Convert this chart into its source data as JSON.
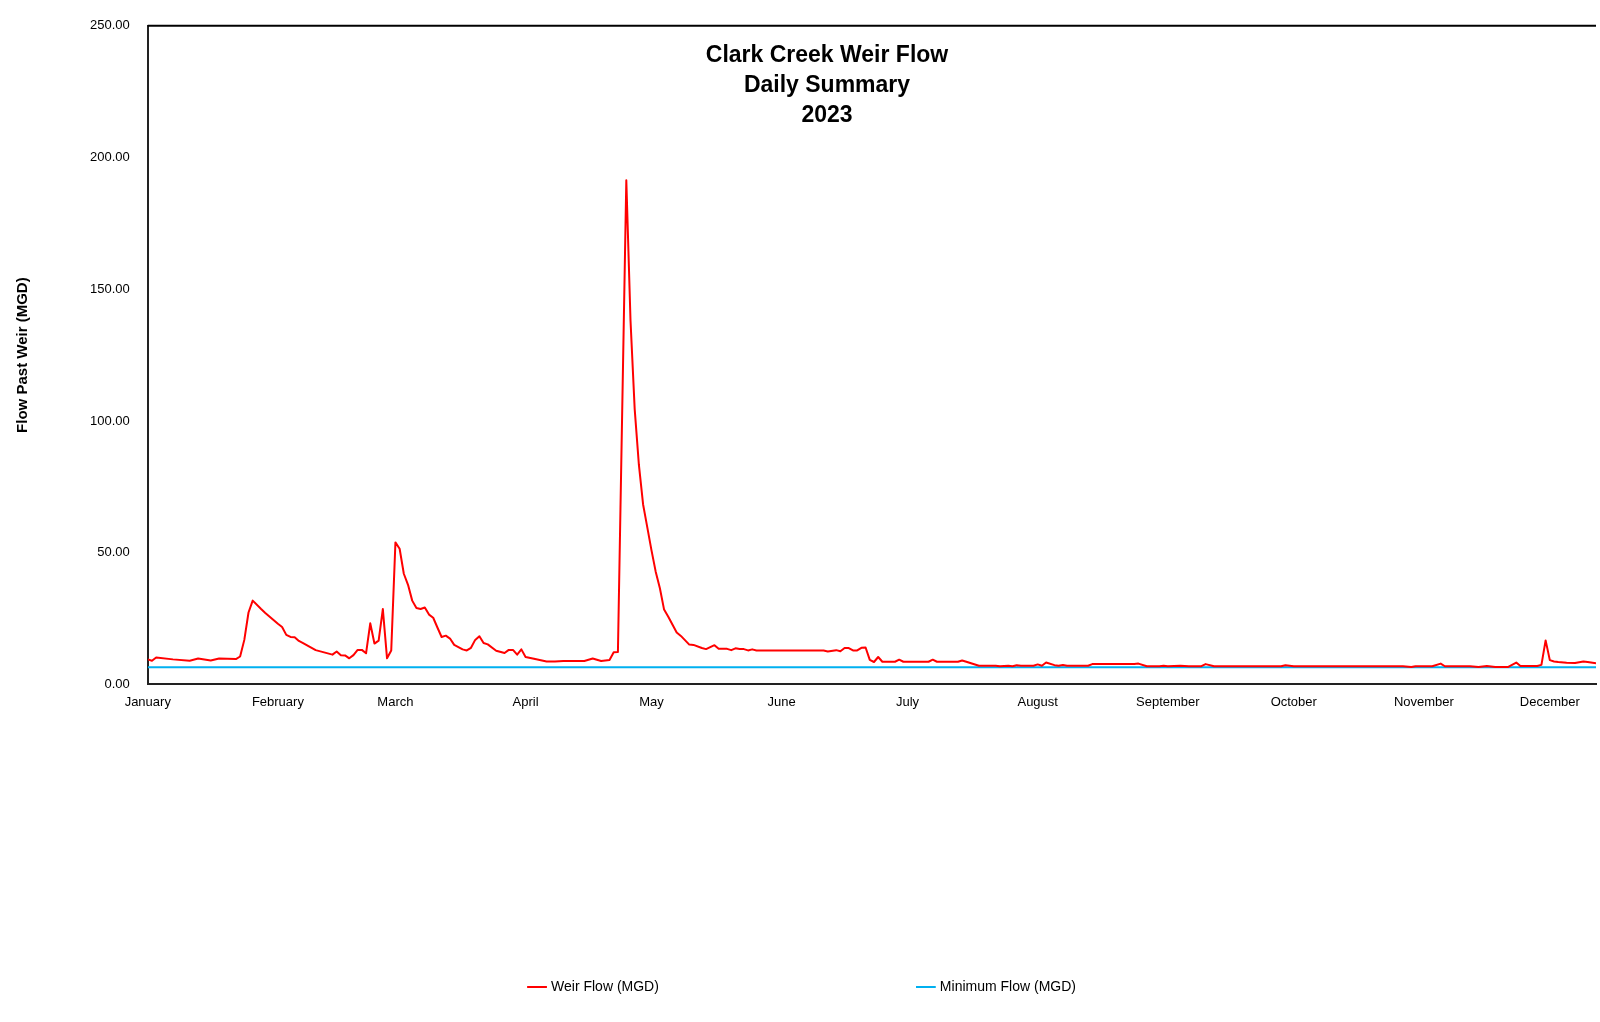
{
  "chart_data": {
    "type": "line",
    "title": "Clark Creek Weir Flow\nDaily Summary\n2023",
    "ylabel": "Flow Past Weir (MGD)",
    "xlim": [
      "2023-01-01",
      "2023-12-12"
    ],
    "xticks": [
      {
        "value": "2023-01-01",
        "label": "January"
      },
      {
        "value": "2023-02-01",
        "label": "February"
      },
      {
        "value": "2023-03-01",
        "label": "March"
      },
      {
        "value": "2023-04-01",
        "label": "April"
      },
      {
        "value": "2023-05-01",
        "label": "May"
      },
      {
        "value": "2023-06-01",
        "label": "June"
      },
      {
        "value": "2023-07-01",
        "label": "July"
      },
      {
        "value": "2023-08-01",
        "label": "August"
      },
      {
        "value": "2023-09-01",
        "label": "September"
      },
      {
        "value": "2023-10-01",
        "label": "October"
      },
      {
        "value": "2023-11-01",
        "label": "November"
      },
      {
        "value": "2023-12-01",
        "label": "December"
      }
    ],
    "ylim": [
      0,
      250
    ],
    "yticks": [
      {
        "value": 0,
        "label": "0.00"
      },
      {
        "value": 50,
        "label": "50.00"
      },
      {
        "value": 100,
        "label": "100.00"
      },
      {
        "value": 150,
        "label": "150.00"
      },
      {
        "value": 200,
        "label": "200.00"
      },
      {
        "value": 250,
        "label": "250.00"
      }
    ],
    "grid": false,
    "legend": "bottom",
    "marker": "none",
    "line_style": "solid",
    "series": [
      {
        "name": "Weir Flow (MGD)",
        "color": "#ff0000",
        "x": [
          "2023-01-01",
          "2023-01-02",
          "2023-01-03",
          "2023-01-07",
          "2023-01-11",
          "2023-01-13",
          "2023-01-16",
          "2023-01-18",
          "2023-01-22",
          "2023-01-23",
          "2023-01-24",
          "2023-01-25",
          "2023-01-26",
          "2023-01-28",
          "2023-01-29",
          "2023-02-01",
          "2023-02-02",
          "2023-02-03",
          "2023-02-04",
          "2023-02-05",
          "2023-02-06",
          "2023-02-07",
          "2023-02-10",
          "2023-02-14",
          "2023-02-15",
          "2023-02-16",
          "2023-02-17",
          "2023-02-18",
          "2023-02-19",
          "2023-02-20",
          "2023-02-21",
          "2023-02-22",
          "2023-02-23",
          "2023-02-24",
          "2023-02-25",
          "2023-02-26",
          "2023-02-27",
          "2023-02-28",
          "2023-03-01",
          "2023-03-02",
          "2023-03-03",
          "2023-03-04",
          "2023-03-05",
          "2023-03-06",
          "2023-03-07",
          "2023-03-08",
          "2023-03-09",
          "2023-03-10",
          "2023-03-11",
          "2023-03-12",
          "2023-03-13",
          "2023-03-14",
          "2023-03-15",
          "2023-03-17",
          "2023-03-18",
          "2023-03-19",
          "2023-03-20",
          "2023-03-21",
          "2023-03-22",
          "2023-03-23",
          "2023-03-25",
          "2023-03-27",
          "2023-03-28",
          "2023-03-29",
          "2023-03-30",
          "2023-03-31",
          "2023-04-01",
          "2023-04-03",
          "2023-04-06",
          "2023-04-08",
          "2023-04-10",
          "2023-04-15",
          "2023-04-17",
          "2023-04-19",
          "2023-04-21",
          "2023-04-22",
          "2023-04-23",
          "2023-04-25",
          "2023-04-26",
          "2023-04-27",
          "2023-04-28",
          "2023-04-29",
          "2023-04-30",
          "2023-05-01",
          "2023-05-02",
          "2023-05-03",
          "2023-05-04",
          "2023-05-05",
          "2023-05-07",
          "2023-05-08",
          "2023-05-10",
          "2023-05-11",
          "2023-05-13",
          "2023-05-14",
          "2023-05-16",
          "2023-05-17",
          "2023-05-19",
          "2023-05-20",
          "2023-05-21",
          "2023-05-22",
          "2023-05-23",
          "2023-05-24",
          "2023-05-25",
          "2023-05-26",
          "2023-06-11",
          "2023-06-12",
          "2023-06-14",
          "2023-06-15",
          "2023-06-16",
          "2023-06-17",
          "2023-06-18",
          "2023-06-19",
          "2023-06-20",
          "2023-06-21",
          "2023-06-22",
          "2023-06-23",
          "2023-06-24",
          "2023-06-25",
          "2023-06-28",
          "2023-06-29",
          "2023-06-30",
          "2023-07-06",
          "2023-07-07",
          "2023-07-08",
          "2023-07-13",
          "2023-07-14",
          "2023-07-15",
          "2023-07-18",
          "2023-07-22",
          "2023-07-23",
          "2023-07-25",
          "2023-07-26",
          "2023-07-27",
          "2023-07-28",
          "2023-07-31",
          "2023-08-01",
          "2023-08-02",
          "2023-08-03",
          "2023-08-05",
          "2023-08-06",
          "2023-08-07",
          "2023-08-08",
          "2023-08-13",
          "2023-08-14",
          "2023-08-24",
          "2023-08-25",
          "2023-08-27",
          "2023-08-30",
          "2023-08-31",
          "2023-09-01",
          "2023-09-04",
          "2023-09-06",
          "2023-09-09",
          "2023-09-10",
          "2023-09-12",
          "2023-09-28",
          "2023-09-29",
          "2023-10-01",
          "2023-10-27",
          "2023-10-29",
          "2023-10-30",
          "2023-11-03",
          "2023-11-05",
          "2023-11-06",
          "2023-11-12",
          "2023-11-14",
          "2023-11-16",
          "2023-11-18",
          "2023-11-21",
          "2023-11-23",
          "2023-11-24",
          "2023-11-28",
          "2023-11-29",
          "2023-11-30",
          "2023-12-01",
          "2023-12-02",
          "2023-12-03",
          "2023-12-05",
          "2023-12-07",
          "2023-12-09",
          "2023-12-10",
          "2023-12-12"
        ],
        "values": [
          9.5,
          9.0,
          10.2,
          9.5,
          9.0,
          9.8,
          9.1,
          9.8,
          9.6,
          10.6,
          16.9,
          27.3,
          31.8,
          28.6,
          27.1,
          23.0,
          21.8,
          18.8,
          18.0,
          17.9,
          16.5,
          15.7,
          13.0,
          11.3,
          12.5,
          11.1,
          11.0,
          9.9,
          11.1,
          13.1,
          13.1,
          11.8,
          23.2,
          15.5,
          16.6,
          28.6,
          9.9,
          12.9,
          53.9,
          51.5,
          42.0,
          37.8,
          31.8,
          29.0,
          28.6,
          29.2,
          26.5,
          25.3,
          21.6,
          18.0,
          18.5,
          17.4,
          15.0,
          13.3,
          12.9,
          13.9,
          16.9,
          18.3,
          15.7,
          15.2,
          12.8,
          11.9,
          13.1,
          13.1,
          11.3,
          13.3,
          10.4,
          9.7,
          8.7,
          8.7,
          8.9,
          8.9,
          9.8,
          8.9,
          9.3,
          12.2,
          12.3,
          191.4,
          138.1,
          104.4,
          83.3,
          68.3,
          59.6,
          50.9,
          42.8,
          36.5,
          28.4,
          25.7,
          19.7,
          18.4,
          15.1,
          15.0,
          13.8,
          13.4,
          14.9,
          13.5,
          13.5,
          13.0,
          13.7,
          13.4,
          13.4,
          12.9,
          13.3,
          12.9,
          12.9,
          12.5,
          13.0,
          12.6,
          13.8,
          13.8,
          12.9,
          12.9,
          13.9,
          14.0,
          9.3,
          8.5,
          10.4,
          8.6,
          8.6,
          9.4,
          8.6,
          8.6,
          9.4,
          8.6,
          8.6,
          9.1,
          8.6,
          7.1,
          7.1,
          6.9,
          7.1,
          6.9,
          7.3,
          7.1,
          7.1,
          7.6,
          7.1,
          8.3,
          7.3,
          7.1,
          7.4,
          7.1,
          7.1,
          7.7,
          7.7,
          7.9,
          6.9,
          6.9,
          7.1,
          6.9,
          7.1,
          6.9,
          6.9,
          7.7,
          6.9,
          6.9,
          7.3,
          6.9,
          6.9,
          6.6,
          6.9,
          6.9,
          7.9,
          6.9,
          6.9,
          6.6,
          7.0,
          6.6,
          6.6,
          8.3,
          7.0,
          7.0,
          7.4,
          16.7,
          9.2,
          8.7,
          8.5,
          8.2,
          8.1,
          8.7,
          8.5,
          8.0
        ]
      },
      {
        "name": "Minimum Flow (MGD)",
        "color": "#00b0f0",
        "x": [
          "2023-01-01",
          "2023-12-12"
        ],
        "values": [
          6.5,
          6.5
        ]
      }
    ]
  }
}
